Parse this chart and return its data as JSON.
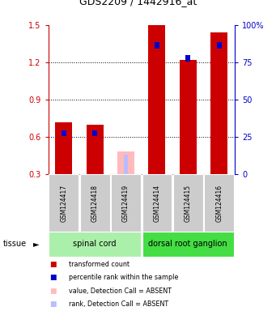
{
  "title": "GDS2209 / 1442916_at",
  "samples": [
    "GSM124417",
    "GSM124418",
    "GSM124419",
    "GSM124414",
    "GSM124415",
    "GSM124416"
  ],
  "red_values": [
    0.72,
    0.7,
    0.0,
    1.5,
    1.22,
    1.44
  ],
  "blue_values": [
    0.605,
    0.605,
    0.0,
    1.31,
    1.205,
    1.31
  ],
  "pink_value": 0.48,
  "lightblue_value": 0.455,
  "absent_index": 2,
  "ylim": [
    0.3,
    1.5
  ],
  "y2lim": [
    0,
    100
  ],
  "yticks": [
    0.3,
    0.6,
    0.9,
    1.2,
    1.5
  ],
  "y2ticks": [
    0,
    25,
    50,
    75,
    100
  ],
  "tissue_groups": [
    {
      "label": "spinal cord",
      "indices": [
        0,
        1,
        2
      ],
      "color": "#aaf0aa"
    },
    {
      "label": "dorsal root ganglion",
      "indices": [
        3,
        4,
        5
      ],
      "color": "#44dd44"
    }
  ],
  "bar_width": 0.55,
  "blue_bar_width": 0.15,
  "blue_bar_height": 0.05,
  "red_color": "#cc0000",
  "blue_color": "#0000cc",
  "pink_color": "#ffbbbb",
  "lightblue_color": "#bbbbff",
  "axis_left_color": "#cc0000",
  "axis_right_color": "#0000cc",
  "tissue_label": "tissue",
  "legend_items": [
    {
      "label": "transformed count",
      "color": "#cc0000"
    },
    {
      "label": "percentile rank within the sample",
      "color": "#0000cc"
    },
    {
      "label": "value, Detection Call = ABSENT",
      "color": "#ffbbbb"
    },
    {
      "label": "rank, Detection Call = ABSENT",
      "color": "#bbbbff"
    }
  ]
}
